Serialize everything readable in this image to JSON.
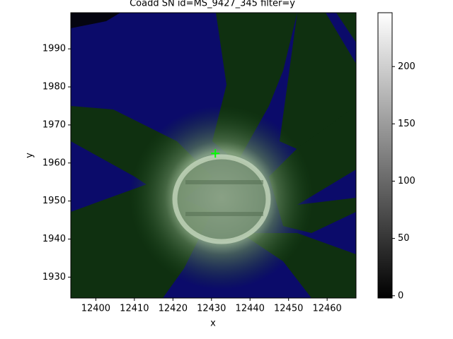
{
  "chart_data": {
    "type": "image",
    "title": "Coadd SN id=MS_9427_345 filter=y",
    "x_label": "x",
    "y_label": "y",
    "xlim": [
      12393.5,
      12467.5
    ],
    "ylim": [
      1924.5,
      1999.5
    ],
    "xticks": [
      12400,
      12410,
      12420,
      12430,
      12440,
      12450,
      12460
    ],
    "yticks": [
      1930,
      1940,
      1950,
      1960,
      1970,
      1980,
      1990
    ],
    "marker": {
      "x": 12431,
      "y": 1962.5,
      "color": "#00ff00"
    },
    "colorbar": {
      "clim": [
        -2,
        247
      ],
      "ticks": [
        0,
        50,
        100,
        150,
        200
      ],
      "colors": [
        "#000000",
        "#ffffff"
      ]
    }
  }
}
